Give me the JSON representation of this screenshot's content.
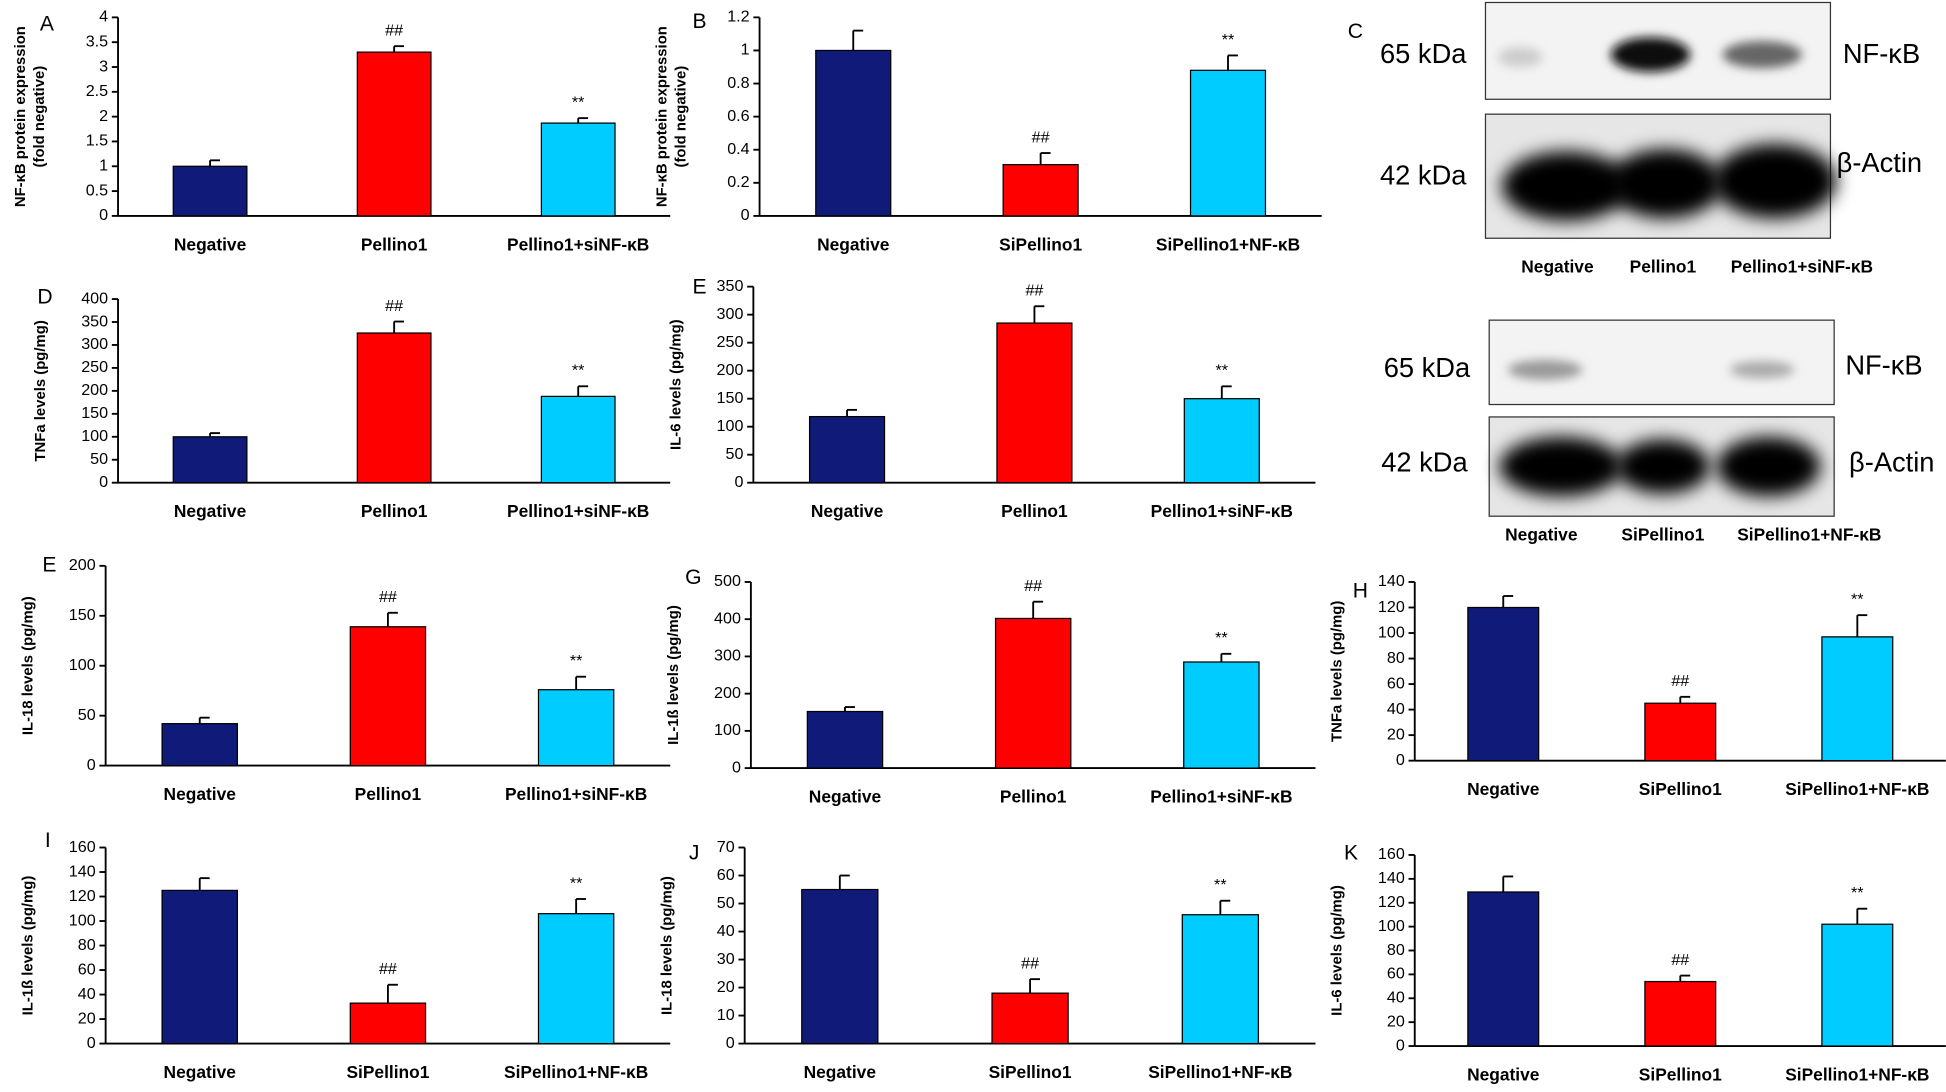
{
  "chart_data": [
    {
      "type": "bar",
      "panel": "A",
      "ylabel": [
        "NF-κB protein expression",
        "(fold negative)"
      ],
      "categories": [
        "Negative",
        "Pellino1",
        "Pellino1+siNF-κB"
      ],
      "values": [
        1,
        3.3,
        1.87
      ],
      "errors": [
        0.12,
        0.12,
        0.1
      ],
      "annotations": [
        null,
        "##",
        "**"
      ],
      "colors": [
        "#101a78",
        "#ff0000",
        "#00ccff"
      ],
      "ylim": [
        0,
        4
      ],
      "yticks": [
        0,
        0.5,
        1,
        1.5,
        2,
        2.5,
        3,
        3.5,
        4
      ]
    },
    {
      "type": "bar",
      "panel": "B",
      "ylabel": [
        "NF-κB protein expression",
        "(fold negative)"
      ],
      "categories": [
        "Negative",
        "SiPellino1",
        "SiPellino1+NF-κB"
      ],
      "values": [
        1,
        0.31,
        0.88
      ],
      "errors": [
        0.12,
        0.07,
        0.09
      ],
      "annotations": [
        null,
        "##",
        "**"
      ],
      "colors": [
        "#101a78",
        "#ff0000",
        "#00ccff"
      ],
      "ylim": [
        0,
        1.2
      ],
      "yticks": [
        0,
        0.2,
        0.4,
        0.6,
        0.8,
        1,
        1.2
      ]
    },
    {
      "type": "bar",
      "panel": "D",
      "ylabel": "TNFa levels (pg/mg)",
      "categories": [
        "Negative",
        "Pellino1",
        "Pellino1+siNF-κB"
      ],
      "values": [
        100,
        326,
        188
      ],
      "errors": [
        8,
        25,
        22
      ],
      "annotations": [
        null,
        "##",
        "**"
      ],
      "colors": [
        "#101a78",
        "#ff0000",
        "#00ccff"
      ],
      "ylim": [
        0,
        400
      ],
      "yticks": [
        0,
        50,
        100,
        150,
        200,
        250,
        300,
        350,
        400
      ]
    },
    {
      "type": "bar",
      "panel": "E",
      "ylabel": "IL-6 levels (pg/mg)",
      "categories": [
        "Negative",
        "Pellino1",
        "Pellino1+siNF-κB"
      ],
      "values": [
        118,
        285,
        150
      ],
      "errors": [
        12,
        30,
        22
      ],
      "annotations": [
        null,
        "##",
        "**"
      ],
      "colors": [
        "#101a78",
        "#ff0000",
        "#00ccff"
      ],
      "ylim": [
        0,
        350
      ],
      "yticks": [
        0,
        50,
        100,
        150,
        200,
        250,
        300,
        350
      ]
    },
    {
      "type": "bar",
      "panel": "E",
      "ylabel": "IL-18 levels (pg/mg)",
      "categories": [
        "Negative",
        "Pellino1",
        "Pellino1+siNF-κB"
      ],
      "values": [
        42,
        139,
        76
      ],
      "errors": [
        6,
        14,
        13
      ],
      "annotations": [
        null,
        "##",
        "**"
      ],
      "colors": [
        "#101a78",
        "#ff0000",
        "#00ccff"
      ],
      "ylim": [
        0,
        200
      ],
      "yticks": [
        0,
        50,
        100,
        150,
        200
      ]
    },
    {
      "type": "bar",
      "panel": "G",
      "ylabel": "IL-1ß levels (pg/mg)",
      "categories": [
        "Negative",
        "Pellino1",
        "Pellino1+siNF-κB"
      ],
      "values": [
        152,
        402,
        285
      ],
      "errors": [
        12,
        45,
        22
      ],
      "annotations": [
        null,
        "##",
        "**"
      ],
      "colors": [
        "#101a78",
        "#ff0000",
        "#00ccff"
      ],
      "ylim": [
        0,
        500
      ],
      "yticks": [
        0,
        100,
        200,
        300,
        400,
        500
      ]
    },
    {
      "type": "bar",
      "panel": "H",
      "ylabel": "TNFa levels (pg/mg)",
      "categories": [
        "Negative",
        "SiPellino1",
        "SiPellino1+NF-κB"
      ],
      "values": [
        120,
        45,
        97
      ],
      "errors": [
        9,
        5,
        17
      ],
      "annotations": [
        null,
        "##",
        "**"
      ],
      "colors": [
        "#101a78",
        "#ff0000",
        "#00ccff"
      ],
      "ylim": [
        0,
        140
      ],
      "yticks": [
        0,
        20,
        40,
        60,
        80,
        100,
        120,
        140
      ]
    },
    {
      "type": "bar",
      "panel": "I",
      "ylabel": "IL-1ß levels (pg/mg)",
      "categories": [
        "Negative",
        "SiPellino1",
        "SiPellino1+NF-κB"
      ],
      "values": [
        125,
        33,
        106
      ],
      "errors": [
        10,
        15,
        12
      ],
      "annotations": [
        null,
        "##",
        "**"
      ],
      "colors": [
        "#101a78",
        "#ff0000",
        "#00ccff"
      ],
      "ylim": [
        0,
        160
      ],
      "yticks": [
        0,
        20,
        40,
        60,
        80,
        100,
        120,
        140,
        160
      ]
    },
    {
      "type": "bar",
      "panel": "J",
      "ylabel": "IL-18 levels (pg/mg)",
      "categories": [
        "Negative",
        "SiPellino1",
        "SiPellino1+NF-κB"
      ],
      "values": [
        55,
        18,
        46
      ],
      "errors": [
        5,
        5,
        5
      ],
      "annotations": [
        null,
        "##",
        "**"
      ],
      "colors": [
        "#101a78",
        "#ff0000",
        "#00ccff"
      ],
      "ylim": [
        0,
        70
      ],
      "yticks": [
        0,
        10,
        20,
        30,
        40,
        50,
        60,
        70
      ]
    },
    {
      "type": "bar",
      "panel": "K",
      "ylabel": "IL-6 levels (pg/mg)",
      "categories": [
        "Negative",
        "SiPellino1",
        "SiPellino1+NF-κB"
      ],
      "values": [
        129,
        54,
        102
      ],
      "errors": [
        13,
        5,
        13
      ],
      "annotations": [
        null,
        "##",
        "**"
      ],
      "colors": [
        "#101a78",
        "#ff0000",
        "#00ccff"
      ],
      "ylim": [
        0,
        160
      ],
      "yticks": [
        0,
        20,
        40,
        60,
        80,
        100,
        120,
        140,
        160
      ]
    }
  ],
  "blots": {
    "panel": "C",
    "groups": [
      {
        "top_size": "65 kDa",
        "top_target": "NF-κB",
        "bottom_size": "42 kDa",
        "bottom_target": "β-Actin",
        "lanes": [
          "Negative",
          "Pellino1",
          "Pellino1+siNF-κB"
        ]
      },
      {
        "top_size": "65 kDa",
        "top_target": "NF-κB",
        "bottom_size": "42 kDa",
        "bottom_target": "β-Actin",
        "lanes": [
          "Negative",
          "SiPellino1",
          "SiPellino1+NF-κB"
        ]
      }
    ]
  }
}
